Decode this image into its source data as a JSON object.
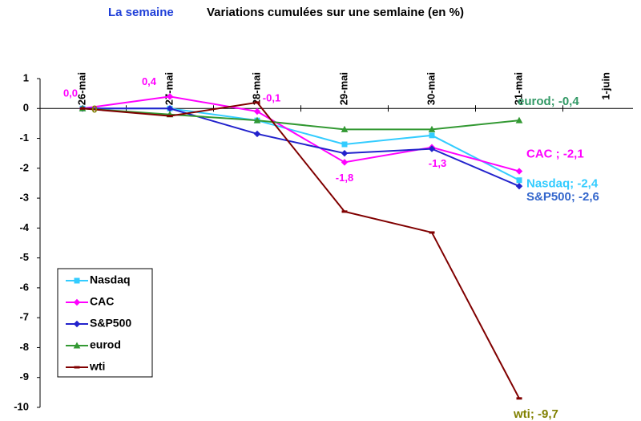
{
  "chart_data": {
    "type": "line",
    "title": "La semaine",
    "subtitle": "Variations cumulées sur une semlaine (en %)",
    "categories": [
      "26-mai",
      "27-mai",
      "28-mai",
      "29-mai",
      "30-mai",
      "31-mai",
      "1-juin"
    ],
    "ylim": [
      -10,
      1
    ],
    "yticks": [
      1,
      0,
      -1,
      -2,
      -3,
      -4,
      -5,
      -6,
      -7,
      -8,
      -9,
      -10
    ],
    "grid": false,
    "legend": "lower left",
    "series": [
      {
        "name": "Nasdaq",
        "color": "#33ccff",
        "marker": "square",
        "values": [
          0,
          0,
          -0.4,
          -1.2,
          -0.9,
          -2.4,
          null
        ],
        "value_labels": [
          null,
          null,
          null,
          null,
          null,
          "Nasdaq; -2,4",
          null
        ],
        "label_color": "#33ccff"
      },
      {
        "name": "CAC",
        "color": "#ff00ff",
        "marker": "diamond",
        "values": [
          0,
          0.4,
          -0.1,
          -1.8,
          -1.3,
          -2.1,
          null
        ],
        "value_labels": [
          "0,0",
          "0,4",
          "-0,1",
          "-1,8",
          "-1,3",
          "CAC ; -2,1",
          null
        ],
        "label_color": "#ff00ff"
      },
      {
        "name": "S&P500",
        "color": "#2222cc",
        "marker": "diamond",
        "values": [
          0,
          0,
          -0.85,
          -1.5,
          -1.35,
          -2.6,
          null
        ],
        "value_labels": [
          null,
          null,
          null,
          null,
          null,
          "S&P500; -2,6",
          null
        ],
        "label_color": "#3366cc"
      },
      {
        "name": "eurod",
        "color": "#339933",
        "marker": "triangle",
        "values": [
          0,
          -0.2,
          -0.4,
          -0.7,
          -0.7,
          -0.4,
          null
        ],
        "value_labels": [
          null,
          null,
          null,
          null,
          null,
          "eurod; -0,4",
          null
        ],
        "label_color": "#339966"
      },
      {
        "name": "wti",
        "color": "#800000",
        "marker": "dash",
        "values": [
          0,
          -0.25,
          0.2,
          -3.45,
          -4.15,
          -9.7,
          null
        ],
        "value_labels": [
          "0",
          null,
          null,
          null,
          null,
          "wti; -9,7",
          null
        ],
        "label_color": "#808000"
      }
    ]
  }
}
